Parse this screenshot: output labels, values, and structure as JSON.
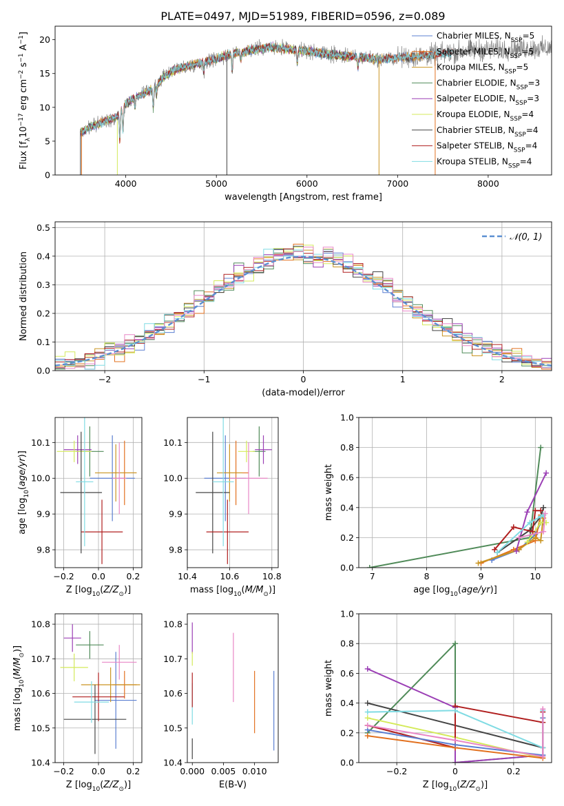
{
  "figure": {
    "title": "PLATE=0497, MJD=51989, FIBERID=0596, z=0.089"
  },
  "colors": {
    "Chabrier MILES": "#5b7fd1",
    "Salpeter MILES": "#e2701e",
    "Kroupa MILES": "#c99420",
    "Chabrier ELODIE": "#4f8a58",
    "Salpeter ELODIE": "#9b3fb5",
    "Kroupa ELODIE": "#d4ea5a",
    "Chabrier STELIB": "#444444",
    "Salpeter STELIB": "#b01e1e",
    "Kroupa STELIB": "#7fdbe3",
    "histo_pink": "#e886c6",
    "spectrum": "#7f7f7f",
    "normal_curve": "#5b8fd1"
  },
  "chart_data": [
    {
      "id": "spectrum",
      "type": "line",
      "title": "PLATE=0497, MJD=51989, FIBERID=0596, z=0.089",
      "xlabel": "wavelength [Angstrom, rest frame]",
      "ylabel": "Flux [fλ10⁻¹⁷ erg cm⁻² s⁻¹ A⁻¹]",
      "xlim": [
        3220,
        8700
      ],
      "ylim": [
        0,
        22
      ],
      "xticks": [
        4000,
        5000,
        6000,
        7000,
        8000
      ],
      "yticks": [
        0,
        5,
        10,
        15,
        20
      ],
      "grid": false,
      "legend_position": "upper-right",
      "legend": [
        "Chabrier MILES, N_SSP=5",
        "Salpeter MILES, N_SSP=5",
        "Kroupa MILES, N_SSP=5",
        "Chabrier ELODIE, N_SSP=3",
        "Salpeter ELODIE, N_SSP=3",
        "Kroupa ELODIE, N_SSP=4",
        "Chabrier STELIB, N_SSP=4",
        "Salpeter STELIB, N_SSP=4",
        "Kroupa STELIB, N_SSP=4"
      ],
      "legend_parts": [
        [
          "Chabrier MILES, N",
          "SSP",
          "=5"
        ],
        [
          "Salpeter MILES, N",
          "SSP",
          "=5"
        ],
        [
          "Kroupa MILES, N",
          "SSP",
          "=5"
        ],
        [
          "Chabrier ELODIE, N",
          "SSP",
          "=3"
        ],
        [
          "Salpeter ELODIE, N",
          "SSP",
          "=3"
        ],
        [
          "Kroupa ELODIE, N",
          "SSP",
          "=4"
        ],
        [
          "Chabrier STELIB, N",
          "SSP",
          "=4"
        ],
        [
          "Salpeter STELIB, N",
          "SSP",
          "=4"
        ],
        [
          "Kroupa STELIB, N",
          "SSP",
          "=4"
        ]
      ],
      "continuum": {
        "x": [
          3500,
          3600,
          3700,
          3800,
          3900,
          4000,
          4100,
          4200,
          4300,
          4400,
          4500,
          4600,
          4800,
          5000,
          5200,
          5400,
          5600,
          5800,
          6000,
          6200,
          6400,
          6600,
          6800,
          7000,
          7200,
          7400,
          7600,
          7800,
          8000,
          8200,
          8400,
          8600,
          8700
        ],
        "y": [
          6.3,
          7.0,
          7.6,
          8.1,
          8.6,
          10.5,
          11.5,
          12.0,
          12.8,
          14.2,
          15.3,
          15.8,
          16.5,
          17.2,
          18.0,
          18.5,
          18.9,
          18.6,
          18.3,
          17.9,
          17.6,
          17.4,
          17.1,
          17.3,
          17.5,
          17.8,
          18.1,
          18.4,
          18.5,
          18.6,
          18.7,
          18.7,
          18.7
        ]
      },
      "absorption_lines": [
        {
          "x": 3934,
          "depth": 4.0
        },
        {
          "x": 3969,
          "depth": 3.5
        },
        {
          "x": 4102,
          "depth": 1.5
        },
        {
          "x": 4304,
          "depth": 3.0
        },
        {
          "x": 4340,
          "depth": 1.5
        },
        {
          "x": 4861,
          "depth": 1.5
        },
        {
          "x": 5175,
          "depth": 2.5
        },
        {
          "x": 5270,
          "depth": 1.2
        },
        {
          "x": 5893,
          "depth": 2.0
        },
        {
          "x": 6563,
          "depth": 1.5
        }
      ],
      "spikes": [
        {
          "x": 3500,
          "y0": 0,
          "y1": 6.5,
          "series": "Chabrier STELIB"
        },
        {
          "x": 3512,
          "y0": 0,
          "y1": 6.5,
          "series": "Salpeter MILES"
        },
        {
          "x": 3907,
          "y0": 0,
          "y1": 8.0,
          "series": "Kroupa ELODIE"
        },
        {
          "x": 5116,
          "y0": 0,
          "y1": 17.5,
          "series": "Chabrier STELIB"
        },
        {
          "x": 6795,
          "y0": 0,
          "y1": 17.0,
          "series": "Kroupa MILES"
        },
        {
          "x": 7415,
          "y0": 0,
          "y1": 18.2,
          "series": "Salpeter MILES"
        }
      ]
    },
    {
      "id": "residuals",
      "type": "histogram",
      "xlabel": "(data-model)/error",
      "ylabel": "Normed distribution",
      "xlim": [
        -2.5,
        2.5
      ],
      "ylim": [
        0,
        0.52
      ],
      "xticks": [
        -2,
        -1,
        0,
        1,
        2
      ],
      "yticks": [
        0.0,
        0.1,
        0.2,
        0.3,
        0.4,
        0.5
      ],
      "grid": true,
      "legend_position": "upper-right",
      "normal_label": "𝒩(0, 1)",
      "bin_width": 0.1
    },
    {
      "id": "age_vs_Z",
      "type": "errorbar",
      "xlabel": "Z [log10(Z/Z⊙)]",
      "ylabel": "age  [log10(age/yr)]",
      "xlim": [
        -0.25,
        0.25
      ],
      "ylim": [
        9.75,
        10.17
      ],
      "xticks": [
        -0.2,
        0.0,
        0.2
      ],
      "yticks": [
        9.8,
        9.9,
        10.0,
        10.1
      ],
      "grid": true,
      "points": [
        {
          "series": "Chabrier MILES",
          "x": 0.08,
          "y": 10.0,
          "xerr": 0.13,
          "yerr": 0.12
        },
        {
          "series": "Salpeter MILES",
          "x": 0.15,
          "y": 10.015,
          "xerr": 0.07,
          "yerr": 0.09
        },
        {
          "series": "Kroupa MILES",
          "x": 0.1,
          "y": 10.015,
          "xerr": 0.12,
          "yerr": 0.08
        },
        {
          "series": "Chabrier ELODIE",
          "x": -0.05,
          "y": 10.075,
          "xerr": 0.08,
          "yerr": 0.07
        },
        {
          "series": "Salpeter ELODIE",
          "x": -0.12,
          "y": 10.08,
          "xerr": 0.08,
          "yerr": 0.04
        },
        {
          "series": "Kroupa ELODIE",
          "x": -0.14,
          "y": 10.075,
          "xerr": 0.1,
          "yerr": 0.03
        },
        {
          "series": "Chabrier STELIB",
          "x": -0.1,
          "y": 9.96,
          "xerr": 0.12,
          "yerr": 0.17
        },
        {
          "series": "Salpeter STELIB",
          "x": 0.02,
          "y": 9.85,
          "xerr": 0.12,
          "yerr": 0.09
        },
        {
          "series": "Kroupa STELIB",
          "x": -0.08,
          "y": 9.99,
          "xerr": 0.05,
          "yerr": 0.18
        },
        {
          "series": "histo_pink",
          "x": 0.12,
          "y": 10.0,
          "xerr": 0.04,
          "yerr": 0.1
        }
      ]
    },
    {
      "id": "age_vs_mass",
      "type": "errorbar",
      "xlabel": "mass [log10(M/M⊙)]",
      "ylabel": "",
      "xlim": [
        10.4,
        10.83
      ],
      "ylim": [
        9.75,
        10.17
      ],
      "xticks": [
        10.4,
        10.6,
        10.8
      ],
      "yticks": [
        9.8,
        9.9,
        10.0,
        10.1
      ],
      "grid": true,
      "points": [
        {
          "series": "Chabrier MILES",
          "x": 10.58,
          "y": 10.0,
          "xerr": 0.1,
          "yerr": 0.12
        },
        {
          "series": "Salpeter MILES",
          "x": 10.63,
          "y": 10.015,
          "xerr": 0.06,
          "yerr": 0.09
        },
        {
          "series": "Kroupa MILES",
          "x": 10.6,
          "y": 10.015,
          "xerr": 0.06,
          "yerr": 0.08
        },
        {
          "series": "Chabrier ELODIE",
          "x": 10.74,
          "y": 10.075,
          "xerr": 0.03,
          "yerr": 0.07
        },
        {
          "series": "Salpeter ELODIE",
          "x": 10.76,
          "y": 10.08,
          "xerr": 0.04,
          "yerr": 0.04
        },
        {
          "series": "Kroupa ELODIE",
          "x": 10.68,
          "y": 10.075,
          "xerr": 0.04,
          "yerr": 0.03
        },
        {
          "series": "Chabrier STELIB",
          "x": 10.52,
          "y": 9.96,
          "xerr": 0.08,
          "yerr": 0.17
        },
        {
          "series": "Salpeter STELIB",
          "x": 10.59,
          "y": 9.85,
          "xerr": 0.1,
          "yerr": 0.09
        },
        {
          "series": "Kroupa STELIB",
          "x": 10.57,
          "y": 9.99,
          "xerr": 0.05,
          "yerr": 0.18
        },
        {
          "series": "histo_pink",
          "x": 10.69,
          "y": 10.0,
          "xerr": 0.09,
          "yerr": 0.1
        }
      ]
    },
    {
      "id": "weight_vs_age",
      "type": "line",
      "xlabel": "age  [log10(age/yr)]",
      "ylabel": "mass weight",
      "xlim": [
        6.75,
        10.3
      ],
      "ylim": [
        0,
        1.0
      ],
      "xticks": [
        7,
        8,
        9,
        10
      ],
      "yticks": [
        0.0,
        0.2,
        0.4,
        0.6,
        0.8,
        1.0
      ],
      "grid": true,
      "series": [
        {
          "name": "Chabrier MILES",
          "x": [
            9.2,
            9.7,
            10.0,
            10.1,
            10.15
          ],
          "y": [
            0.05,
            0.12,
            0.22,
            0.3,
            0.3
          ]
        },
        {
          "name": "Salpeter MILES",
          "x": [
            9.0,
            9.6,
            10.0,
            10.1,
            10.15
          ],
          "y": [
            0.03,
            0.12,
            0.18,
            0.35,
            0.33
          ]
        },
        {
          "name": "Kroupa MILES",
          "x": [
            8.95,
            9.7,
            10.0,
            10.1,
            10.15
          ],
          "y": [
            0.03,
            0.12,
            0.2,
            0.18,
            0.35
          ]
        },
        {
          "name": "Chabrier ELODIE",
          "x": [
            6.95,
            9.9,
            10.1
          ],
          "y": [
            0.0,
            0.2,
            0.8
          ]
        },
        {
          "name": "Salpeter ELODIE",
          "x": [
            9.65,
            9.85,
            10.2
          ],
          "y": [
            0.11,
            0.37,
            0.63
          ]
        },
        {
          "name": "Kroupa ELODIE",
          "x": [
            9.85,
            10.1,
            10.2
          ],
          "y": [
            0.17,
            0.3,
            0.3
          ]
        },
        {
          "name": "Chabrier STELIB",
          "x": [
            9.3,
            9.9,
            10.1,
            10.15
          ],
          "y": [
            0.1,
            0.25,
            0.34,
            0.4
          ]
        },
        {
          "name": "Salpeter STELIB",
          "x": [
            9.25,
            9.6,
            9.95,
            10.0,
            10.1
          ],
          "y": [
            0.12,
            0.27,
            0.24,
            0.38,
            0.38
          ]
        },
        {
          "name": "Kroupa STELIB",
          "x": [
            9.3,
            9.9,
            10.1,
            10.15
          ],
          "y": [
            0.1,
            0.3,
            0.34,
            0.35
          ]
        },
        {
          "name": "histo_pink",
          "x": [
            9.7,
            10.15,
            10.18
          ],
          "y": [
            0.2,
            0.24,
            0.36
          ]
        }
      ]
    },
    {
      "id": "mass_vs_Z",
      "type": "errorbar",
      "xlabel": "Z [log10(Z/Z⊙)]",
      "ylabel": "mass [log10(M/M⊙)]",
      "xlim": [
        -0.25,
        0.25
      ],
      "ylim": [
        10.4,
        10.83
      ],
      "xticks": [
        -0.2,
        0.0,
        0.2
      ],
      "yticks": [
        10.4,
        10.5,
        10.6,
        10.7,
        10.8
      ],
      "grid": true,
      "points": [
        {
          "series": "Chabrier MILES",
          "x": 0.1,
          "y": 10.58,
          "xerr": 0.12,
          "yerr": 0.14
        },
        {
          "series": "Salpeter MILES",
          "x": 0.15,
          "y": 10.625,
          "xerr": 0.07,
          "yerr": 0.04
        },
        {
          "series": "Kroupa MILES",
          "x": 0.07,
          "y": 10.625,
          "xerr": 0.17,
          "yerr": 0.05
        },
        {
          "series": "Chabrier ELODIE",
          "x": -0.05,
          "y": 10.74,
          "xerr": 0.08,
          "yerr": 0.04
        },
        {
          "series": "Salpeter ELODIE",
          "x": -0.15,
          "y": 10.76,
          "xerr": 0.05,
          "yerr": 0.04
        },
        {
          "series": "Kroupa ELODIE",
          "x": -0.14,
          "y": 10.675,
          "xerr": 0.08,
          "yerr": 0.04
        },
        {
          "series": "Chabrier STELIB",
          "x": -0.02,
          "y": 10.525,
          "xerr": 0.18,
          "yerr": 0.1
        },
        {
          "series": "Salpeter STELIB",
          "x": 0.0,
          "y": 10.59,
          "xerr": 0.15,
          "yerr": 0.07
        },
        {
          "series": "Kroupa STELIB",
          "x": -0.04,
          "y": 10.575,
          "xerr": 0.1,
          "yerr": 0.06
        },
        {
          "series": "histo_pink",
          "x": 0.12,
          "y": 10.69,
          "xerr": 0.1,
          "yerr": 0.05
        }
      ]
    },
    {
      "id": "mass_vs_EBV",
      "type": "errorbar",
      "xlabel": "E(B-V)",
      "ylabel": "",
      "xlim": [
        -0.0008,
        0.0138
      ],
      "ylim": [
        10.4,
        10.83
      ],
      "xticks": [
        0.0,
        0.005,
        0.01
      ],
      "xtick_labels": [
        "0.000",
        "0.005",
        "0.010"
      ],
      "yticks": [
        10.4,
        10.5,
        10.6,
        10.7,
        10.8
      ],
      "grid": false,
      "points": [
        {
          "series": "Chabrier MILES",
          "x": 0.0131,
          "y": 10.55,
          "xerr": 0,
          "yerr": 0.115
        },
        {
          "series": "Salpeter MILES",
          "x": 0.01,
          "y": 10.575,
          "xerr": 0,
          "yerr": 0.09
        },
        {
          "series": "histo_pink",
          "x": 0.0066,
          "y": 10.675,
          "xerr": 0,
          "yerr": 0.1
        },
        {
          "series": "Salpeter ELODIE",
          "x": 0.0,
          "y": 10.76,
          "xerr": 0,
          "yerr": 0.045
        },
        {
          "series": "Kroupa ELODIE",
          "x": 0.0,
          "y": 10.7,
          "xerr": 0,
          "yerr": 0.02
        },
        {
          "series": "Chabrier STELIB",
          "x": 0.0,
          "y": 10.44,
          "xerr": 0,
          "yerr": 0.03
        },
        {
          "series": "Kroupa STELIB",
          "x": 0.0,
          "y": 10.57,
          "xerr": 0,
          "yerr": 0.06
        },
        {
          "series": "Salpeter STELIB",
          "x": 0.0,
          "y": 10.61,
          "xerr": 0,
          "yerr": 0.05
        }
      ]
    },
    {
      "id": "weight_vs_Z",
      "type": "line",
      "xlabel": "Z [log10(Z/Z⊙)]",
      "ylabel": "mass weight",
      "xlim": [
        -0.33,
        0.33
      ],
      "ylim": [
        0,
        1.0
      ],
      "xticks": [
        -0.2,
        0.0,
        0.2
      ],
      "yticks": [
        0.0,
        0.2,
        0.4,
        0.6,
        0.8,
        1.0
      ],
      "grid": true,
      "series": [
        {
          "name": "Chabrier ELODIE",
          "x": [
            -0.3,
            0.0,
            0.0,
            0.3
          ],
          "y": [
            0.2,
            0.8,
            0.0,
            0.05
          ]
        },
        {
          "name": "Salpeter ELODIE",
          "x": [
            -0.3,
            0.0,
            0.0,
            0.3
          ],
          "y": [
            0.63,
            0.37,
            0.0,
            0.05
          ]
        },
        {
          "name": "Kroupa ELODIE",
          "x": [
            -0.3,
            0.0,
            0.3
          ],
          "y": [
            0.3,
            0.17,
            0.03
          ]
        },
        {
          "name": "Chabrier STELIB",
          "x": [
            -0.3,
            0.3
          ],
          "y": [
            0.4,
            0.1
          ]
        },
        {
          "name": "Salpeter STELIB",
          "x": [
            -0.3,
            0.0,
            0.0,
            0.3,
            0.3
          ],
          "y": [
            0.25,
            0.1,
            0.38,
            0.27,
            0.34
          ]
        },
        {
          "name": "Kroupa STELIB",
          "x": [
            -0.3,
            0.0,
            0.3,
            0.3
          ],
          "y": [
            0.34,
            0.35,
            0.1,
            0.35
          ]
        },
        {
          "name": "Salpeter MILES",
          "x": [
            -0.3,
            0.0,
            0.3,
            0.3
          ],
          "y": [
            0.18,
            0.1,
            0.03,
            0.3
          ]
        },
        {
          "name": "Chabrier MILES",
          "x": [
            -0.3,
            0.0,
            0.3,
            0.3
          ],
          "y": [
            0.22,
            0.12,
            0.05,
            0.3
          ]
        },
        {
          "name": "histo_pink",
          "x": [
            -0.3,
            0.0,
            0.3,
            0.3
          ],
          "y": [
            0.25,
            0.15,
            0.04,
            0.36
          ]
        }
      ]
    }
  ]
}
